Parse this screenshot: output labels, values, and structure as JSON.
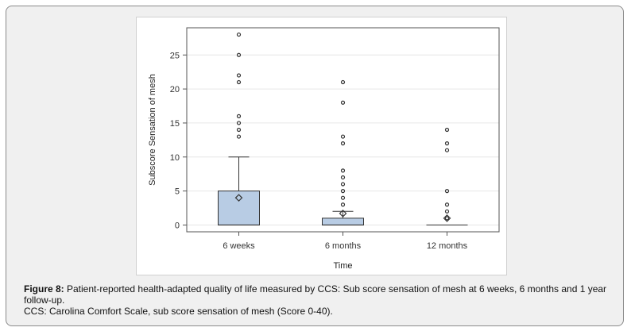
{
  "chart_data": {
    "type": "box",
    "xlabel": "Time",
    "ylabel": "Subscore Sensation of mesh",
    "ylim": [
      -1,
      29
    ],
    "yticks": [
      0,
      5,
      10,
      15,
      20,
      25
    ],
    "categories": [
      "6 weeks",
      "6 months",
      "12 months"
    ],
    "grid": true,
    "legend": "none",
    "colors": {
      "box_fill": "#b8cce4",
      "box_stroke": "#333333",
      "grid": "#e6e6e6"
    },
    "boxes": [
      {
        "category": "6 weeks",
        "min": 0,
        "q1": 0,
        "median": 0,
        "q3": 5,
        "max": 10,
        "mean": 4,
        "outliers": [
          13,
          14,
          15,
          16,
          21,
          22,
          25,
          28
        ]
      },
      {
        "category": "6 months",
        "min": 0,
        "q1": 0,
        "median": 0,
        "q3": 1,
        "max": 2,
        "mean": 1.7,
        "outliers": [
          3,
          4,
          5,
          6,
          7,
          8,
          12,
          13,
          18,
          21
        ]
      },
      {
        "category": "12 months",
        "min": 0,
        "q1": 0,
        "median": 0,
        "q3": 0,
        "max": 0,
        "mean": 1,
        "outliers": [
          1,
          2,
          3,
          5,
          11,
          12,
          14
        ]
      }
    ]
  },
  "caption": {
    "label": "Figure 8:",
    "text": " Patient-reported health-adapted quality of life measured by CCS: Sub score sensation of mesh at 6 weeks, 6 months and 1 year follow-up.",
    "note": "CCS: Carolina Comfort Scale, sub score sensation of mesh (Score 0-40)."
  }
}
